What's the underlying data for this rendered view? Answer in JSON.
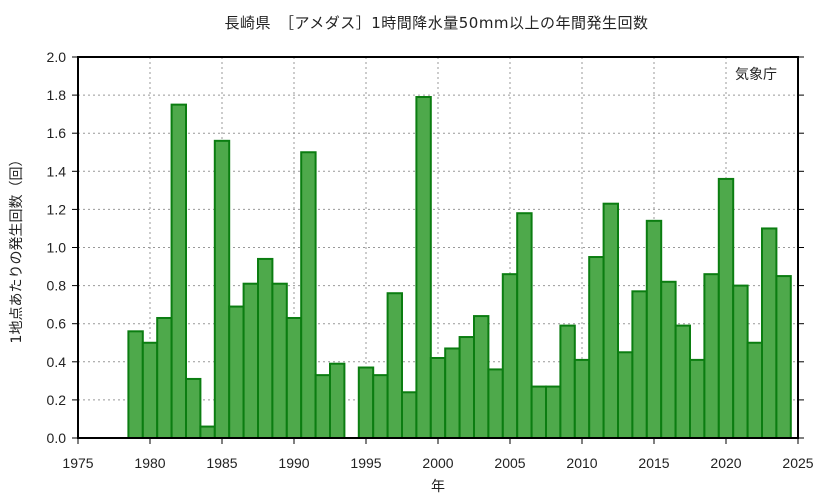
{
  "title": "長崎県　［アメダス］1時間降水量50mm以上の年間発生回数",
  "credit": "気象庁",
  "colors": {
    "bar_fill": "#4ea94b",
    "bar_stroke": "#0b7d11",
    "grid": "#999999",
    "axis": "#000000"
  },
  "chart_data": {
    "type": "bar",
    "title": "長崎県　［アメダス］1時間降水量50mm以上の年間発生回数",
    "xlabel": "年",
    "ylabel": "1地点あたりの発生回数（回）",
    "xlim": [
      1975,
      2025
    ],
    "ylim": [
      0.0,
      2.0
    ],
    "xticks": [
      "1975",
      "1980",
      "1985",
      "1990",
      "1995",
      "2000",
      "2005",
      "2010",
      "2015",
      "2020",
      "2025"
    ],
    "yticks": [
      "0.0",
      "0.2",
      "0.4",
      "0.6",
      "0.8",
      "1.0",
      "1.2",
      "1.4",
      "1.6",
      "1.8",
      "2.0"
    ],
    "grid": true,
    "legend": null,
    "annotations": [
      "気象庁"
    ],
    "categories": [
      1979,
      1980,
      1981,
      1982,
      1983,
      1984,
      1985,
      1986,
      1987,
      1988,
      1989,
      1990,
      1991,
      1992,
      1993,
      1994,
      1995,
      1996,
      1997,
      1998,
      1999,
      2000,
      2001,
      2002,
      2003,
      2004,
      2005,
      2006,
      2007,
      2008,
      2009,
      2010,
      2011,
      2012,
      2013,
      2014,
      2015,
      2016,
      2017,
      2018,
      2019,
      2020,
      2021,
      2022,
      2023,
      2024
    ],
    "values": [
      0.56,
      0.5,
      0.63,
      1.75,
      0.31,
      0.06,
      1.56,
      0.69,
      0.81,
      0.94,
      0.81,
      0.63,
      1.5,
      0.33,
      0.39,
      null,
      0.37,
      0.33,
      0.76,
      0.24,
      1.79,
      0.42,
      0.47,
      0.53,
      0.64,
      0.36,
      0.86,
      1.18,
      0.27,
      0.27,
      0.59,
      0.41,
      0.95,
      1.23,
      0.45,
      0.77,
      1.14,
      0.82,
      0.59,
      0.41,
      0.86,
      1.36,
      0.8,
      0.5,
      1.1,
      0.85
    ]
  }
}
